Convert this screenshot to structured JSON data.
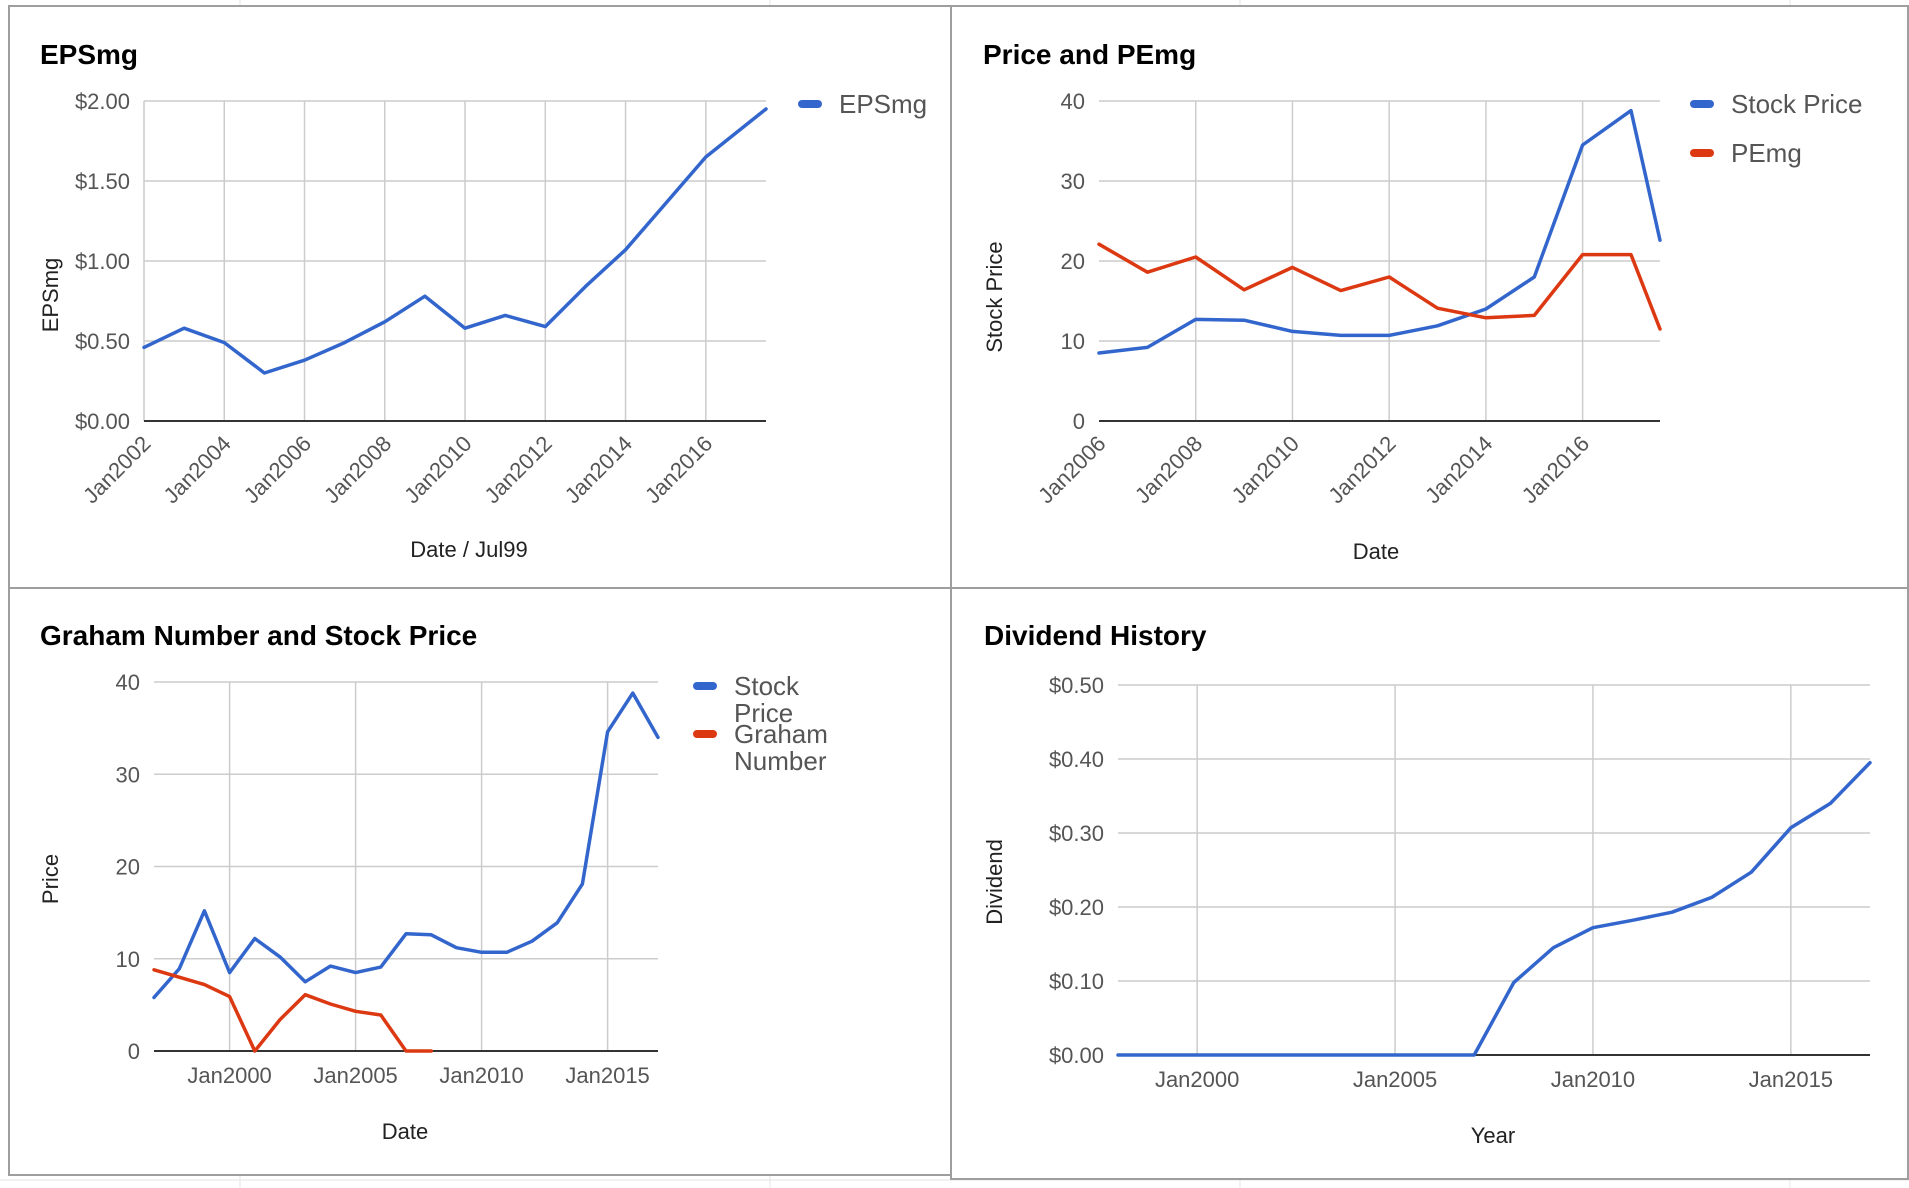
{
  "colors": {
    "blue": "#3366cc",
    "red": "#dc3912",
    "grid": "#cccccc",
    "axis": "#333333",
    "border": "#9e9e9e"
  },
  "chart_data": [
    {
      "type": "line",
      "title": "EPSmg",
      "xlabel": "Date / Jul99",
      "ylabel": "EPSmg",
      "x_tick_labels": [
        "Jan2002",
        "Jan2004",
        "Jan2006",
        "Jan2008",
        "Jan2010",
        "Jan2012",
        "Jan2014",
        "Jan2016"
      ],
      "y_tick_labels": [
        "$0.00",
        "$0.50",
        "$1.00",
        "$1.50",
        "$2.00"
      ],
      "ylim": [
        0,
        2
      ],
      "legend_position": "right",
      "series": [
        {
          "name": "EPSmg",
          "color": "#3366cc",
          "x": [
            2002,
            2003,
            2004,
            2005,
            2006,
            2007,
            2008,
            2009,
            2010,
            2011,
            2012,
            2013,
            2014,
            2015,
            2016,
            2017,
            2017.5
          ],
          "values": [
            0.46,
            0.58,
            0.49,
            0.3,
            0.38,
            0.49,
            0.62,
            0.78,
            0.58,
            0.66,
            0.59,
            0.84,
            1.07,
            1.36,
            1.65,
            1.85,
            1.95
          ]
        }
      ]
    },
    {
      "type": "line",
      "title": "Price and PEmg",
      "xlabel": "Date",
      "ylabel": "Stock Price",
      "x_tick_labels": [
        "Jan2006",
        "Jan2008",
        "Jan2010",
        "Jan2012",
        "Jan2014",
        "Jan2016"
      ],
      "y_tick_labels": [
        "0",
        "10",
        "20",
        "30",
        "40"
      ],
      "ylim": [
        0,
        40
      ],
      "legend_position": "right",
      "series": [
        {
          "name": "Stock Price",
          "color": "#3366cc",
          "x": [
            2006,
            2007,
            2008,
            2009,
            2010,
            2011,
            2012,
            2013,
            2014,
            2015,
            2016,
            2017,
            2017.6
          ],
          "values": [
            8.5,
            9.2,
            12.7,
            12.6,
            11.2,
            10.7,
            10.7,
            11.9,
            14.0,
            18.0,
            34.5,
            38.8,
            22.6
          ]
        },
        {
          "name": "PEmg",
          "color": "#dc3912",
          "x": [
            2006,
            2007,
            2008,
            2009,
            2010,
            2011,
            2012,
            2013,
            2014,
            2015,
            2016,
            2017,
            2017.6
          ],
          "values": [
            22.1,
            18.6,
            20.5,
            16.4,
            19.2,
            16.3,
            18.0,
            14.1,
            12.9,
            13.2,
            20.8,
            20.8,
            11.5
          ]
        }
      ]
    },
    {
      "type": "line",
      "title": "Graham Number and Stock Price",
      "xlabel": "Date",
      "ylabel": "Price",
      "x_tick_labels": [
        "Jan2000",
        "Jan2005",
        "Jan2010",
        "Jan2015"
      ],
      "y_tick_labels": [
        "0",
        "10",
        "20",
        "30",
        "40"
      ],
      "ylim": [
        0,
        40
      ],
      "legend_position": "right",
      "series": [
        {
          "name": "Stock Price",
          "color": "#3366cc",
          "x": [
            1997,
            1998,
            1999,
            2000,
            2001,
            2002,
            2003,
            2004,
            2005,
            2006,
            2007,
            2008,
            2009,
            2010,
            2011,
            2012,
            2013,
            2014,
            2015,
            2016,
            2017
          ],
          "values": [
            5.8,
            8.9,
            15.2,
            8.5,
            12.2,
            10.2,
            7.5,
            9.2,
            8.5,
            9.1,
            12.7,
            12.6,
            11.2,
            10.7,
            10.7,
            11.9,
            13.9,
            18.1,
            34.6,
            38.8,
            34.0
          ]
        },
        {
          "name": "Graham Number",
          "color": "#dc3912",
          "x": [
            1997,
            1998,
            1999,
            2000,
            2001,
            2002,
            2003,
            2004,
            2005,
            2006,
            2007,
            2008
          ],
          "values": [
            8.8,
            8.0,
            7.2,
            5.9,
            0.0,
            3.4,
            6.1,
            5.1,
            4.3,
            3.9,
            0.0,
            0.0
          ]
        }
      ]
    },
    {
      "type": "line",
      "title": "Dividend History",
      "xlabel": "Year",
      "ylabel": "Dividend",
      "x_tick_labels": [
        "Jan2000",
        "Jan2005",
        "Jan2010",
        "Jan2015"
      ],
      "y_tick_labels": [
        "$0.00",
        "$0.10",
        "$0.20",
        "$0.30",
        "$0.40",
        "$0.50"
      ],
      "ylim": [
        0,
        0.5
      ],
      "legend_position": "none",
      "series": [
        {
          "name": "",
          "color": "#3366cc",
          "x": [
            1998,
            1999,
            2000,
            2001,
            2002,
            2003,
            2004,
            2005,
            2006,
            2007,
            2008,
            2009,
            2010,
            2011,
            2012,
            2013,
            2014,
            2015,
            2016,
            2017
          ],
          "values": [
            0,
            0,
            0,
            0,
            0,
            0,
            0,
            0,
            0,
            0,
            0.098,
            0.145,
            0.172,
            0.182,
            0.193,
            0.213,
            0.247,
            0.307,
            0.34,
            0.395
          ]
        }
      ]
    }
  ]
}
